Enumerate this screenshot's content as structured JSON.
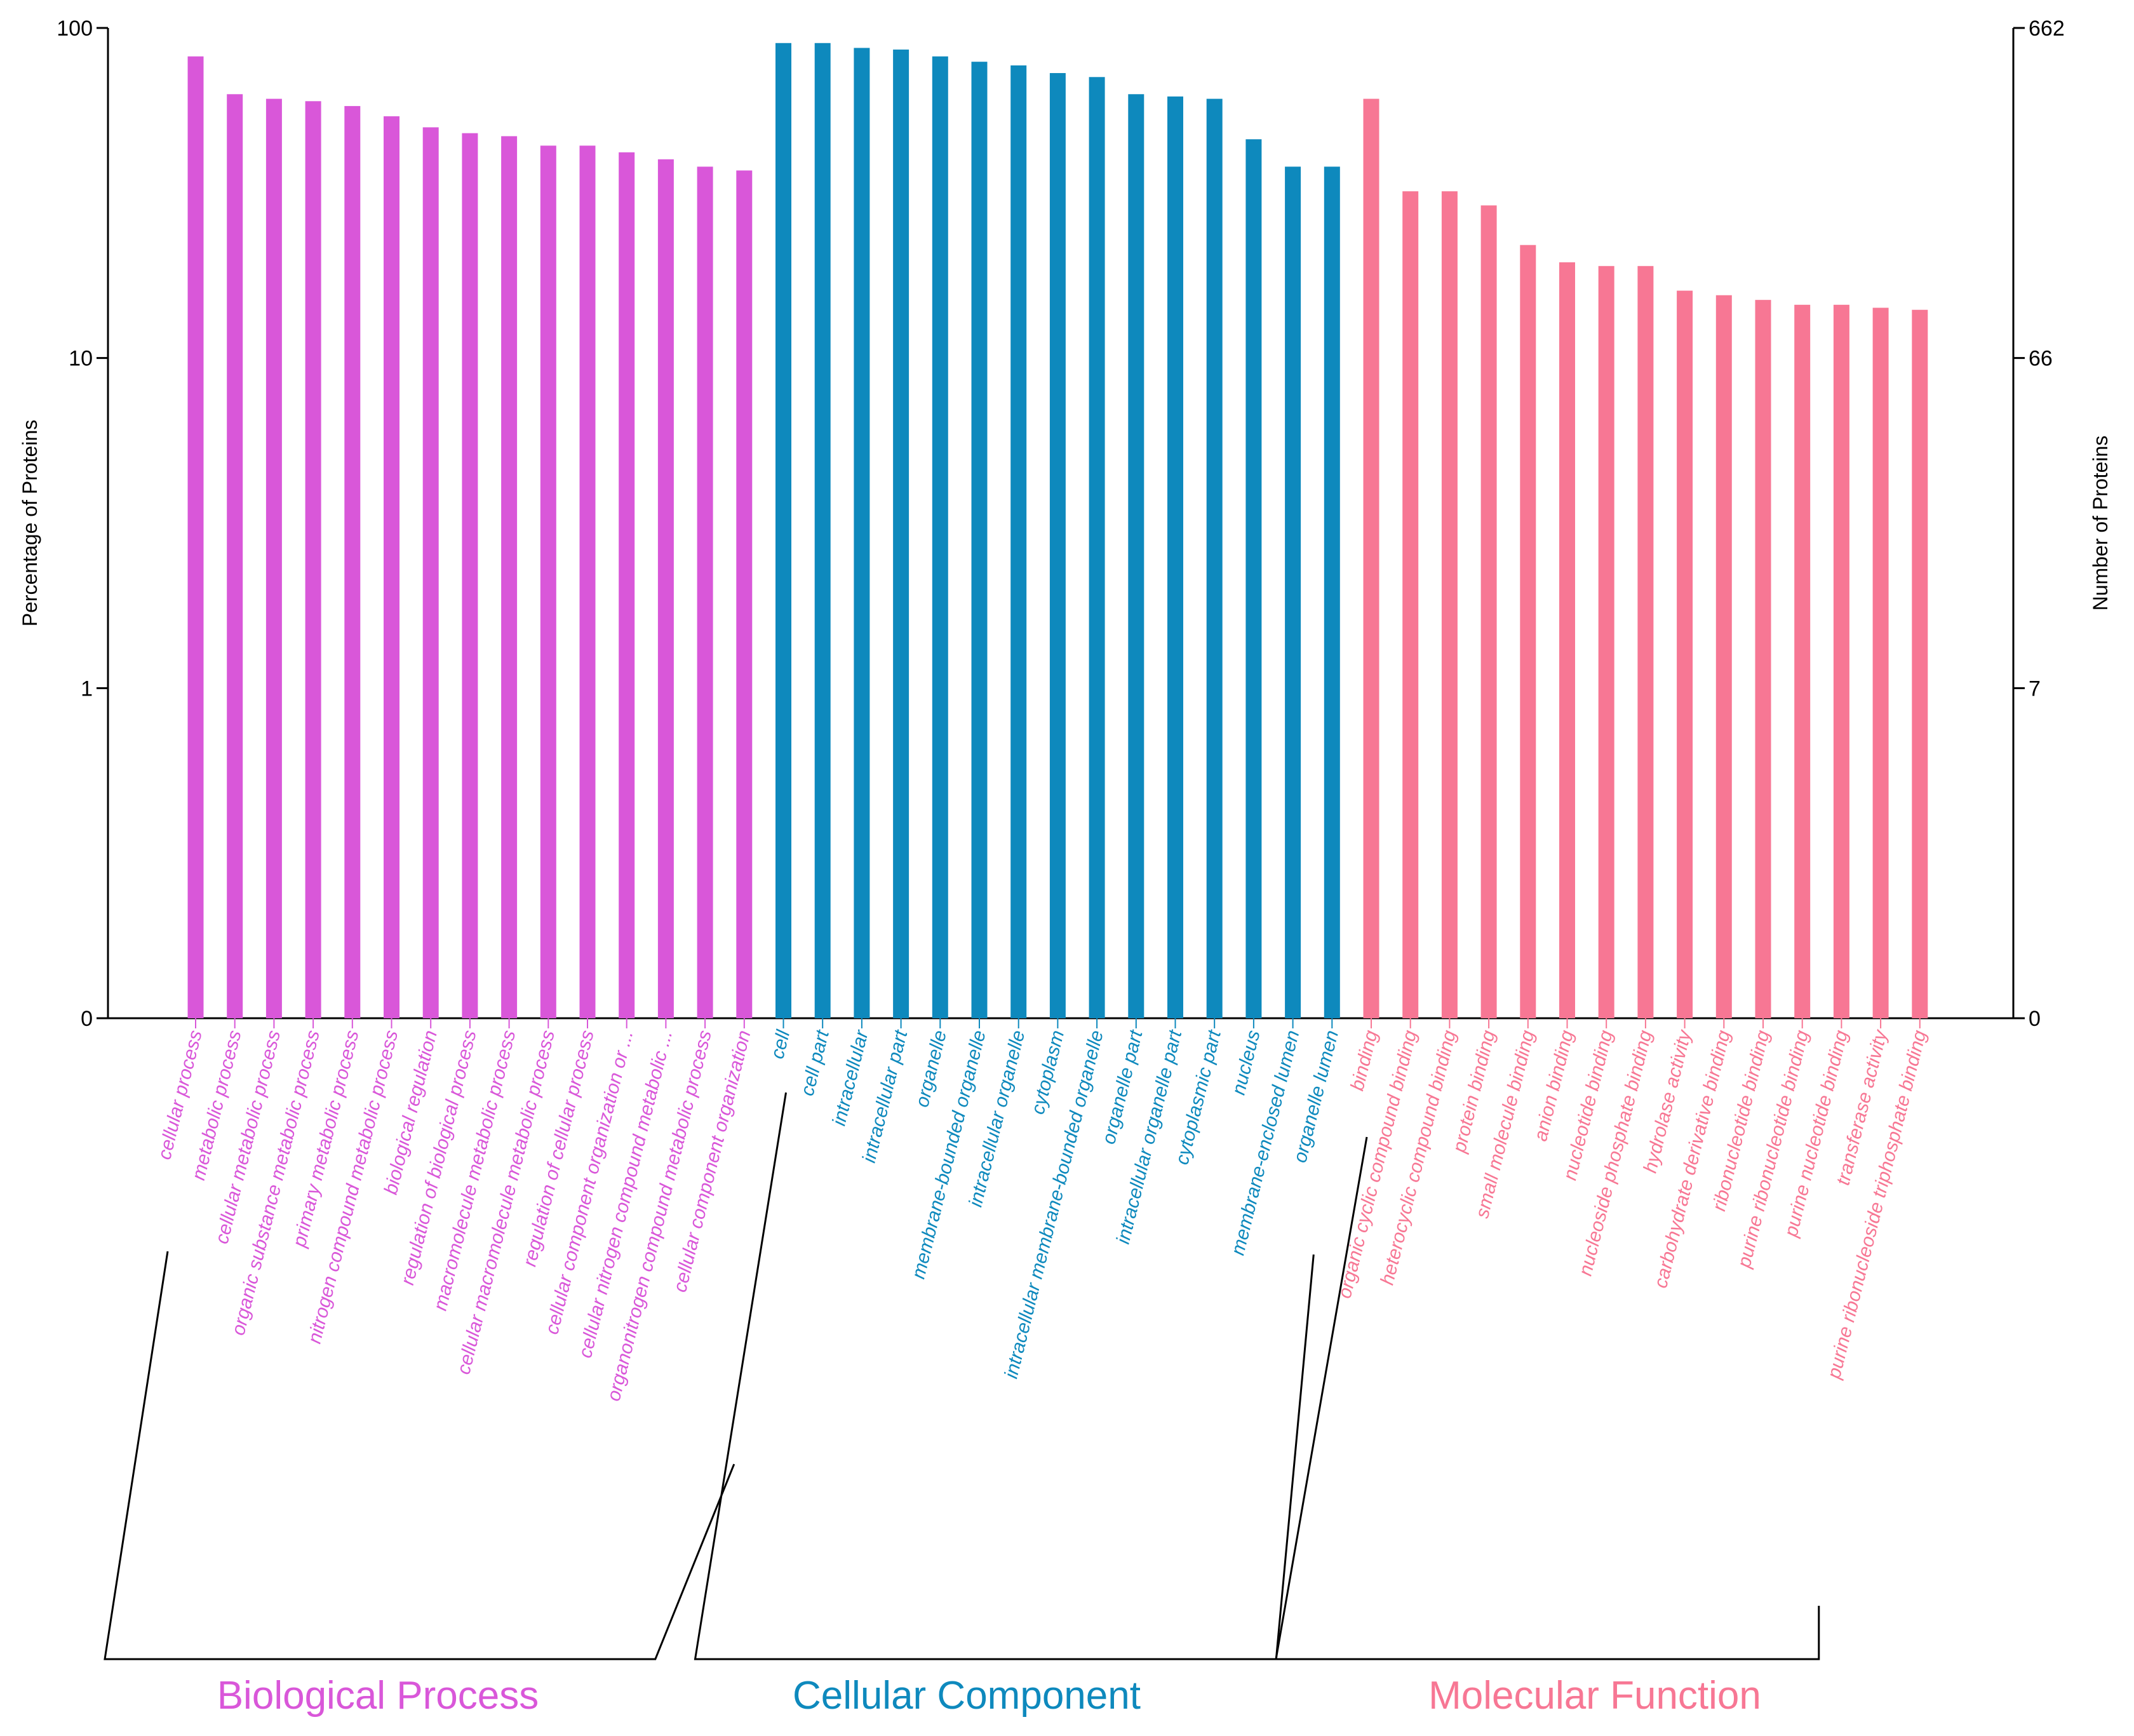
{
  "chart_data": {
    "type": "bar",
    "title": "",
    "ylabel_left": "Percentage of Proteins",
    "ylabel_right": "Number of Proteins",
    "yscale": "log",
    "ylim": [
      0.1,
      100
    ],
    "left_ticks": [
      {
        "value": 100,
        "label": "100"
      },
      {
        "value": 10,
        "label": "10"
      },
      {
        "value": 1,
        "label": "1"
      },
      {
        "value": 0.1,
        "label": "0"
      }
    ],
    "right_ticks": [
      {
        "value": 100,
        "label": "662"
      },
      {
        "value": 10,
        "label": "66"
      },
      {
        "value": 1,
        "label": "7"
      },
      {
        "value": 0.1,
        "label": "0"
      }
    ],
    "groups": [
      {
        "name": "Biological Process",
        "color": "#D957D9",
        "categories": [
          "cellular process",
          "metabolic process",
          "cellular metabolic process",
          "organic substance metabolic process",
          "primary metabolic process",
          "nitrogen compound metabolic process",
          "biological regulation",
          "regulation of biological process",
          "macromolecule metabolic process",
          "cellular macromolecule metabolic process",
          "regulation of cellular process",
          "cellular component organization or ...",
          "cellular nitrogen compound metabolic ...",
          "organonitrogen compound metabolic process",
          "cellular component organization"
        ],
        "values": [
          82,
          63,
          61,
          60,
          58,
          54,
          50,
          48,
          47,
          44,
          44,
          42,
          40,
          38,
          37
        ]
      },
      {
        "name": "Cellular Component",
        "color": "#0E89BD",
        "categories": [
          "cell",
          "cell part",
          "intracellular",
          "intracellular part",
          "organelle",
          "membrane-bounded organelle",
          "intracellular organelle",
          "cytoplasm",
          "intracellular membrane-bounded organelle",
          "organelle part",
          "intracellular organelle part",
          "cytoplasmic part",
          "nucleus",
          "membrane-enclosed lumen",
          "organelle lumen"
        ],
        "values": [
          90,
          90,
          87,
          86,
          82,
          79,
          77,
          73,
          71,
          63,
          62,
          61,
          46,
          38,
          38
        ]
      },
      {
        "name": "Molecular Function",
        "color": "#F77794",
        "categories": [
          "binding",
          "organic cyclic compound binding",
          "heterocyclic compound binding",
          "protein binding",
          "small molecule binding",
          "anion binding",
          "nucleotide binding",
          "nucleoside phosphate binding",
          "hydrolase activity",
          "carbohydrate derivative binding",
          "ribonucleotide binding",
          "purine ribonucleotide binding",
          "purine nucleotide binding",
          "transferase activity",
          "purine ribonucleoside triphosphate binding"
        ],
        "values": [
          61,
          32,
          32,
          29,
          22,
          19.5,
          19,
          19,
          16,
          15.5,
          15,
          14.5,
          14.5,
          14.2,
          14
        ]
      }
    ]
  }
}
